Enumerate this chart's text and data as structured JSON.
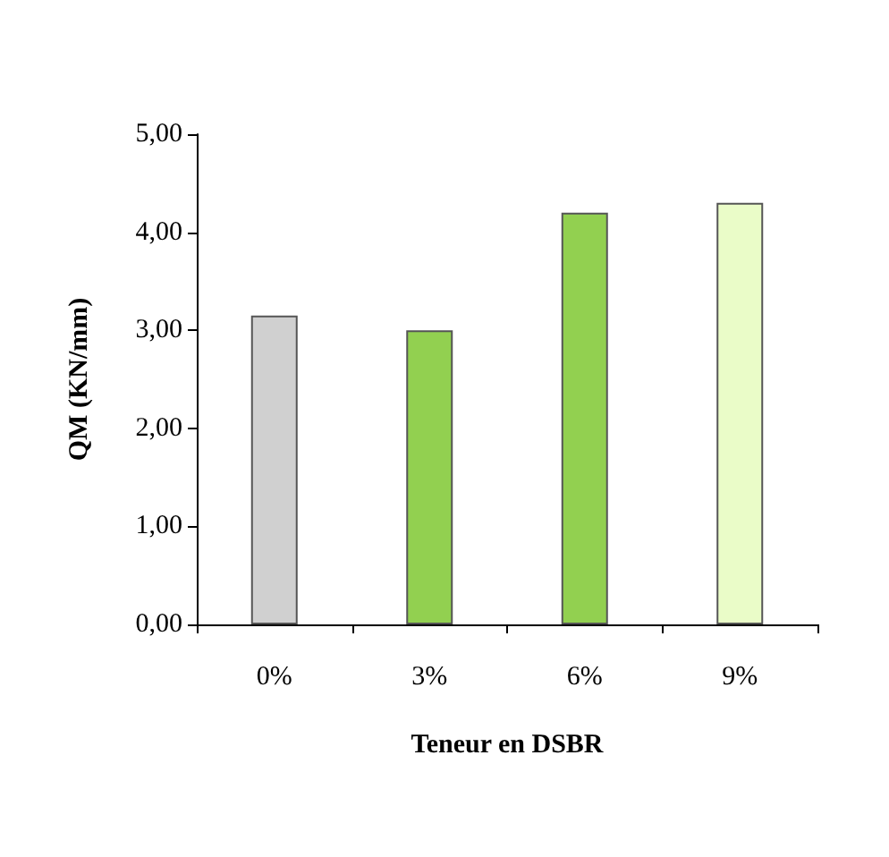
{
  "chart_data": {
    "type": "bar",
    "xlabel": "Teneur en DSBR",
    "ylabel": "QM (KN/mm)",
    "categories": [
      "0%",
      "3%",
      "6%",
      "9%"
    ],
    "values": [
      3.15,
      3.0,
      4.2,
      4.3
    ],
    "colors": [
      "#d0d0d0",
      "#92d050",
      "#92d050",
      "#eafcc8"
    ],
    "ylim": [
      0,
      5
    ],
    "yticks": [
      {
        "value": 0,
        "label": "0,00"
      },
      {
        "value": 1,
        "label": "1,00"
      },
      {
        "value": 2,
        "label": "2,00"
      },
      {
        "value": 3,
        "label": "3,00"
      },
      {
        "value": 4,
        "label": "4,00"
      },
      {
        "value": 5,
        "label": "5,00"
      }
    ],
    "grid": false
  }
}
